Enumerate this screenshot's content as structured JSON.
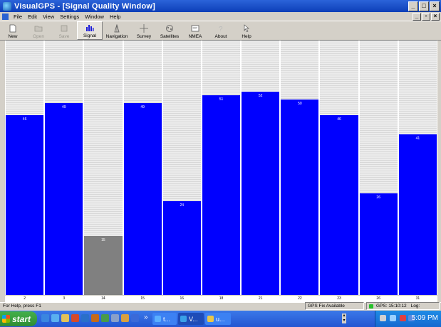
{
  "window": {
    "title": "VisualGPS - [Signal Quality Window]"
  },
  "menu": {
    "items": [
      "File",
      "Edit",
      "View",
      "Settings",
      "Window",
      "Help"
    ]
  },
  "toolbar": {
    "buttons": [
      {
        "label": "New",
        "icon": "new-document-icon",
        "enabled": true
      },
      {
        "label": "Open",
        "icon": "open-folder-icon",
        "enabled": false
      },
      {
        "label": "Save",
        "icon": "save-disk-icon",
        "enabled": false
      },
      {
        "label": "Signal",
        "icon": "signal-bars-icon",
        "enabled": true,
        "active": true
      },
      {
        "label": "Navigation",
        "icon": "navigation-icon",
        "enabled": true
      },
      {
        "label": "Survey",
        "icon": "survey-crosshair-icon",
        "enabled": true
      },
      {
        "label": "Satellites",
        "icon": "satellite-icon",
        "enabled": true
      },
      {
        "label": "NMEA",
        "icon": "nmea-terminal-icon",
        "enabled": true
      },
      {
        "label": "About",
        "icon": "about-question-icon",
        "enabled": true
      },
      {
        "label": "Help",
        "icon": "help-pointer-icon",
        "enabled": true
      }
    ]
  },
  "chart_data": {
    "type": "bar",
    "categories": [
      "2",
      "3",
      "14",
      "15",
      "16",
      "18",
      "21",
      "22",
      "23",
      "26",
      "31"
    ],
    "values": [
      46,
      49,
      15,
      49,
      24,
      51,
      52,
      50,
      46,
      26,
      41
    ],
    "value_labels": [
      "46",
      "49",
      "15",
      "49",
      "24",
      "51",
      "52",
      "50",
      "46",
      "26",
      "41"
    ],
    "series_colors": [
      "#0000ff",
      "#0000ff",
      "#808080",
      "#0000ff",
      "#0000ff",
      "#0000ff",
      "#0000ff",
      "#0000ff",
      "#0000ff",
      "#0000ff",
      "#0000ff"
    ],
    "ylim": [
      0,
      65
    ],
    "title": "",
    "xlabel": "",
    "ylabel": ""
  },
  "status": {
    "help_text": "For Help, press F1",
    "fix_text": "GPS Fix Available",
    "gps_text": "GPS: 15:10:12",
    "log_text": "Log:"
  },
  "taskbar": {
    "start_label": "start",
    "overflow": "»",
    "tasks": [
      {
        "label": "t...",
        "icon": "ie-icon"
      },
      {
        "label": "V...",
        "icon": "visualgps-icon",
        "active": true
      },
      {
        "label": "u...",
        "icon": "folder-icon"
      }
    ],
    "clock": "5:09 PM"
  },
  "colors": {
    "bar_active": "#0000ff",
    "bar_inactive": "#808080",
    "titlebar": "#1d4fc4"
  }
}
